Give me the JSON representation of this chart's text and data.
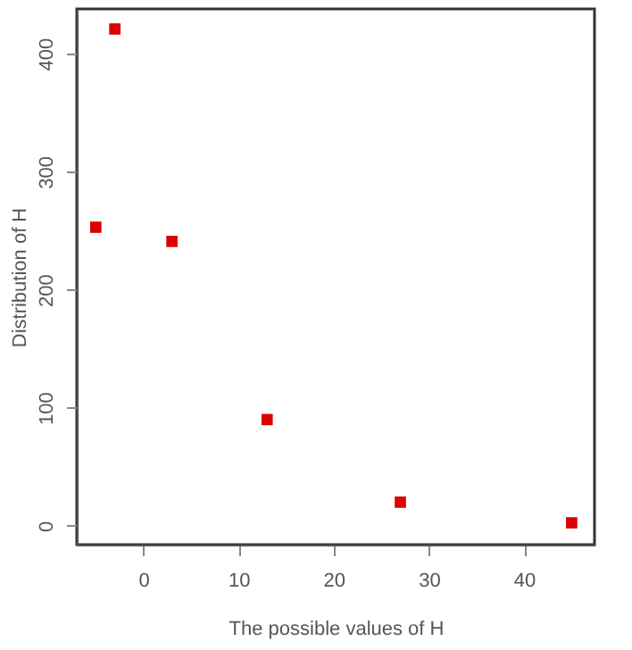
{
  "chart_data": {
    "type": "scatter",
    "xlabel": "The possible values of H",
    "ylabel": "Distribution of H",
    "x": [
      -5,
      -3,
      3,
      13,
      27,
      45
    ],
    "series": [
      {
        "color": "#dd0000",
        "values": [
          253,
          421,
          241,
          90,
          20,
          2.5
        ]
      }
    ],
    "xlim": [
      -7,
      47.4
    ],
    "ylim": [
      -16,
      438
    ],
    "xticks": [
      0,
      10,
      20,
      30,
      40
    ],
    "yticks": [
      0,
      100,
      200,
      300,
      400
    ],
    "grid": false,
    "marker": "square"
  }
}
